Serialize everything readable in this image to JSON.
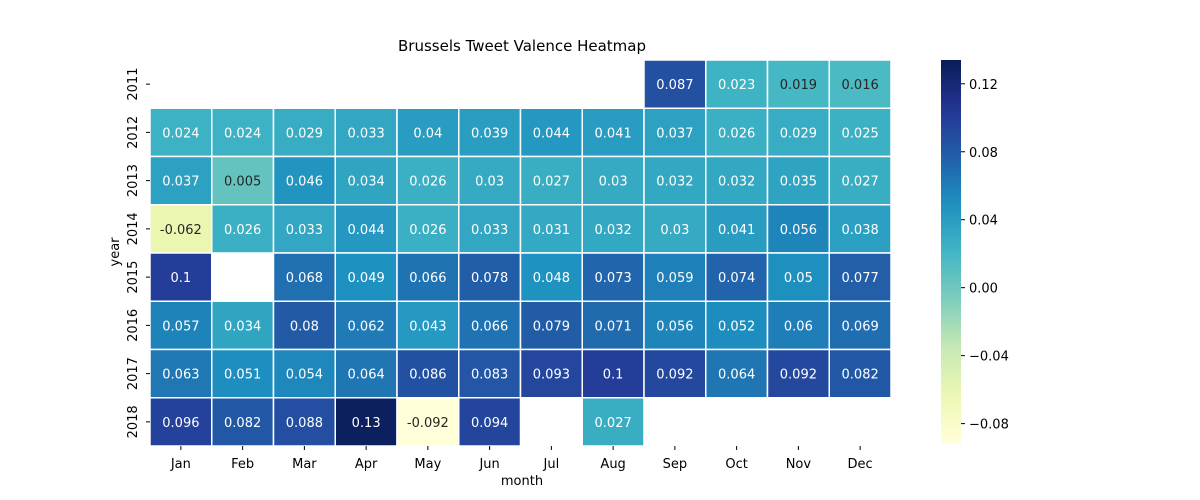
{
  "chart_data": {
    "type": "heatmap",
    "title": "Brussels Tweet Valence Heatmap",
    "xlabel": "month",
    "ylabel": "year",
    "x_categories": [
      "Jan",
      "Feb",
      "Mar",
      "Apr",
      "May",
      "Jun",
      "Jul",
      "Aug",
      "Sep",
      "Oct",
      "Nov",
      "Dec"
    ],
    "y_categories": [
      "2011",
      "2012",
      "2013",
      "2014",
      "2015",
      "2016",
      "2017",
      "2018"
    ],
    "values": [
      [
        null,
        null,
        null,
        null,
        null,
        null,
        null,
        null,
        0.087,
        0.023,
        0.019,
        0.016
      ],
      [
        0.024,
        0.024,
        0.029,
        0.033,
        0.04,
        0.039,
        0.044,
        0.041,
        0.037,
        0.026,
        0.029,
        0.025
      ],
      [
        0.037,
        0.005,
        0.046,
        0.034,
        0.026,
        0.03,
        0.027,
        0.03,
        0.032,
        0.032,
        0.035,
        0.027
      ],
      [
        -0.062,
        0.026,
        0.033,
        0.044,
        0.026,
        0.033,
        0.031,
        0.032,
        0.03,
        0.041,
        0.056,
        0.038
      ],
      [
        0.1,
        null,
        0.068,
        0.049,
        0.066,
        0.078,
        0.048,
        0.073,
        0.059,
        0.074,
        0.05,
        0.077
      ],
      [
        0.057,
        0.034,
        0.08,
        0.062,
        0.043,
        0.066,
        0.079,
        0.071,
        0.056,
        0.052,
        0.06,
        0.069
      ],
      [
        0.063,
        0.051,
        0.054,
        0.064,
        0.086,
        0.083,
        0.093,
        0.1,
        0.092,
        0.064,
        0.092,
        0.082
      ],
      [
        0.096,
        0.082,
        0.088,
        0.13,
        -0.092,
        0.094,
        null,
        0.027,
        null,
        null,
        null,
        null
      ]
    ],
    "colormap": "YlGnBu",
    "color_range": [
      -0.092,
      0.134
    ],
    "colorbar_ticks": [
      "0.12",
      "0.08",
      "0.04",
      "0.00",
      "−0.04",
      "−0.08"
    ],
    "colorbar_tick_values": [
      0.12,
      0.08,
      0.04,
      0.0,
      -0.04,
      -0.08
    ],
    "cell_border_color": "#ffffff",
    "annotated": true,
    "grid": false
  }
}
